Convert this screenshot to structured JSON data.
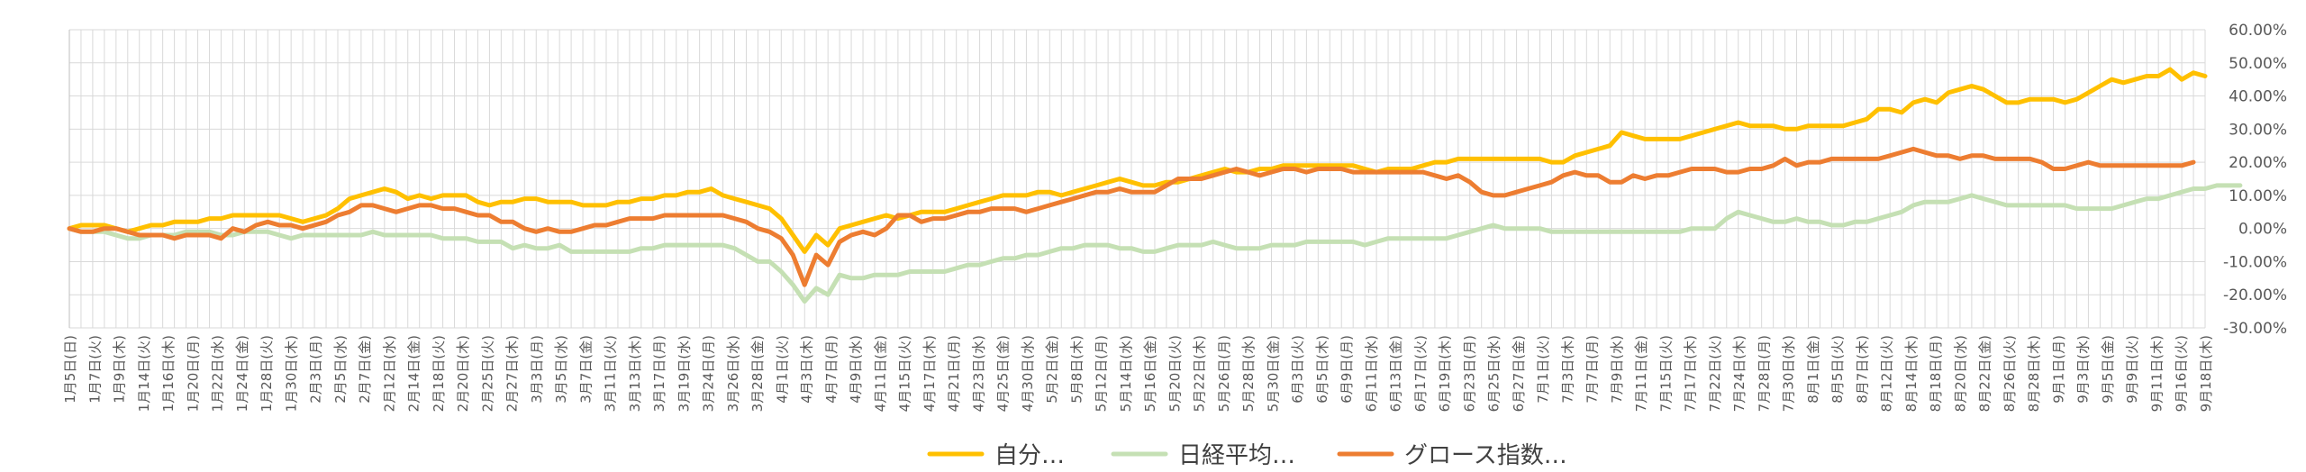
{
  "chart_data": {
    "type": "line",
    "title": "",
    "xlabel": "",
    "ylabel": "",
    "ylim": [
      -0.3,
      0.6
    ],
    "y_ticks": [
      0.6,
      0.5,
      0.4,
      0.3,
      0.2,
      0.1,
      0.0,
      -0.1,
      -0.2,
      -0.3
    ],
    "y_tick_labels": [
      "60.00%",
      "50.00%",
      "40.00%",
      "30.00%",
      "20.00%",
      "10.00%",
      "0.00%",
      "-10.00%",
      "-20.00%",
      "-30.00%"
    ],
    "grid": true,
    "legend_position": "bottom",
    "x_labels": [
      "1月5日(日)",
      "1月7日(火)",
      "1月9日(木)",
      "1月14日(火)",
      "1月16日(木)",
      "1月20日(月)",
      "1月22日(水)",
      "1月24日(金)",
      "1月28日(火)",
      "1月30日(木)",
      "2月3日(月)",
      "2月5日(水)",
      "2月7日(金)",
      "2月12日(水)",
      "2月14日(金)",
      "2月18日(火)",
      "2月20日(木)",
      "2月25日(火)",
      "2月27日(木)",
      "3月3日(月)",
      "3月5日(水)",
      "3月7日(金)",
      "3月11日(火)",
      "3月13日(木)",
      "3月17日(月)",
      "3月19日(水)",
      "3月24日(月)",
      "3月26日(水)",
      "3月28日(金)",
      "4月1日(火)",
      "4月3日(木)",
      "4月7日(月)",
      "4月9日(水)",
      "4月11日(金)",
      "4月15日(火)",
      "4月17日(木)",
      "4月21日(月)",
      "4月23日(水)",
      "4月25日(金)",
      "4月30日(水)",
      "5月2日(金)",
      "5月8日(木)",
      "5月12日(月)",
      "5月14日(水)",
      "5月16日(金)",
      "5月20日(火)",
      "5月22日(木)",
      "5月26日(月)",
      "5月28日(水)",
      "5月30日(金)",
      "6月3日(火)",
      "6月5日(木)",
      "6月9日(月)",
      "6月11日(水)",
      "6月13日(金)",
      "6月17日(火)",
      "6月19日(木)",
      "6月23日(月)",
      "6月25日(水)",
      "6月27日(金)",
      "7月1日(火)",
      "7月3日(木)",
      "7月7日(月)",
      "7月9日(水)",
      "7月11日(金)",
      "7月15日(火)",
      "7月17日(木)",
      "7月22日(火)",
      "7月24日(木)",
      "7月28日(月)",
      "7月30日(水)",
      "8月1日(金)",
      "8月5日(火)",
      "8月7日(木)",
      "8月12日(火)",
      "8月14日(木)",
      "8月18日(月)",
      "8月20日(水)",
      "8月22日(金)",
      "8月26日(火)",
      "8月28日(木)",
      "9月1日(月)",
      "9月3日(水)",
      "9月5日(金)",
      "9月9日(火)",
      "9月11日(木)",
      "9月16日(火)",
      "9月18日(木)"
    ],
    "series": [
      {
        "name": "自分…",
        "color": "#ffc000",
        "values": [
          0.0,
          0.01,
          0.01,
          0.01,
          0.0,
          -0.01,
          0.0,
          0.01,
          0.01,
          0.02,
          0.02,
          0.02,
          0.03,
          0.03,
          0.04,
          0.04,
          0.04,
          0.04,
          0.04,
          0.03,
          0.02,
          0.03,
          0.04,
          0.06,
          0.09,
          0.1,
          0.11,
          0.12,
          0.11,
          0.09,
          0.1,
          0.09,
          0.1,
          0.1,
          0.1,
          0.08,
          0.07,
          0.08,
          0.08,
          0.09,
          0.09,
          0.08,
          0.08,
          0.08,
          0.07,
          0.07,
          0.07,
          0.08,
          0.08,
          0.09,
          0.09,
          0.1,
          0.1,
          0.11,
          0.11,
          0.12,
          0.1,
          0.09,
          0.08,
          0.07,
          0.06,
          0.03,
          -0.02,
          -0.07,
          -0.02,
          -0.05,
          0.0,
          0.01,
          0.02,
          0.03,
          0.04,
          0.03,
          0.04,
          0.05,
          0.05,
          0.05,
          0.06,
          0.07,
          0.08,
          0.09,
          0.1,
          0.1,
          0.1,
          0.11,
          0.11,
          0.1,
          0.11,
          0.12,
          0.13,
          0.14,
          0.15,
          0.14,
          0.13,
          0.13,
          0.14,
          0.14,
          0.15,
          0.16,
          0.17,
          0.18,
          0.17,
          0.17,
          0.18,
          0.18,
          0.19,
          0.19,
          0.19,
          0.19,
          0.19,
          0.19,
          0.19,
          0.18,
          0.17,
          0.18,
          0.18,
          0.18,
          0.19,
          0.2,
          0.2,
          0.21,
          0.21,
          0.21,
          0.21,
          0.21,
          0.21,
          0.21,
          0.21,
          0.2,
          0.2,
          0.22,
          0.23,
          0.24,
          0.25,
          0.29,
          0.28,
          0.27,
          0.27,
          0.27,
          0.27,
          0.28,
          0.29,
          0.3,
          0.31,
          0.32,
          0.31,
          0.31,
          0.31,
          0.3,
          0.3,
          0.31,
          0.31,
          0.31,
          0.31,
          0.32,
          0.33,
          0.36,
          0.36,
          0.35,
          0.38,
          0.39,
          0.38,
          0.41,
          0.42,
          0.43,
          0.42,
          0.4,
          0.38,
          0.38,
          0.39,
          0.39,
          0.39,
          0.38,
          0.39,
          0.41,
          0.43,
          0.45,
          0.44,
          0.45,
          0.46,
          0.46,
          0.48,
          0.45,
          0.47,
          0.46
        ]
      },
      {
        "name": "日経平均…",
        "color": "#c5e0b4",
        "values": [
          0.0,
          -0.01,
          -0.01,
          -0.01,
          -0.02,
          -0.03,
          -0.03,
          -0.02,
          -0.02,
          -0.02,
          -0.01,
          -0.01,
          -0.01,
          -0.02,
          -0.02,
          -0.01,
          -0.01,
          -0.01,
          -0.02,
          -0.03,
          -0.02,
          -0.02,
          -0.02,
          -0.02,
          -0.02,
          -0.02,
          -0.01,
          -0.02,
          -0.02,
          -0.02,
          -0.02,
          -0.02,
          -0.03,
          -0.03,
          -0.03,
          -0.04,
          -0.04,
          -0.04,
          -0.06,
          -0.05,
          -0.06,
          -0.06,
          -0.05,
          -0.07,
          -0.07,
          -0.07,
          -0.07,
          -0.07,
          -0.07,
          -0.06,
          -0.06,
          -0.05,
          -0.05,
          -0.05,
          -0.05,
          -0.05,
          -0.05,
          -0.06,
          -0.08,
          -0.1,
          -0.1,
          -0.13,
          -0.17,
          -0.22,
          -0.18,
          -0.2,
          -0.14,
          -0.15,
          -0.15,
          -0.14,
          -0.14,
          -0.14,
          -0.13,
          -0.13,
          -0.13,
          -0.13,
          -0.12,
          -0.11,
          -0.11,
          -0.1,
          -0.09,
          -0.09,
          -0.08,
          -0.08,
          -0.07,
          -0.06,
          -0.06,
          -0.05,
          -0.05,
          -0.05,
          -0.06,
          -0.06,
          -0.07,
          -0.07,
          -0.06,
          -0.05,
          -0.05,
          -0.05,
          -0.04,
          -0.05,
          -0.06,
          -0.06,
          -0.06,
          -0.05,
          -0.05,
          -0.05,
          -0.04,
          -0.04,
          -0.04,
          -0.04,
          -0.04,
          -0.05,
          -0.04,
          -0.03,
          -0.03,
          -0.03,
          -0.03,
          -0.03,
          -0.03,
          -0.02,
          -0.01,
          0.0,
          0.01,
          0.0,
          0.0,
          0.0,
          0.0,
          -0.01,
          -0.01,
          -0.01,
          -0.01,
          -0.01,
          -0.01,
          -0.01,
          -0.01,
          -0.01,
          -0.01,
          -0.01,
          -0.01,
          0.0,
          0.0,
          0.0,
          0.03,
          0.05,
          0.04,
          0.03,
          0.02,
          0.02,
          0.03,
          0.02,
          0.02,
          0.01,
          0.01,
          0.02,
          0.02,
          0.03,
          0.04,
          0.05,
          0.07,
          0.08,
          0.08,
          0.08,
          0.09,
          0.1,
          0.09,
          0.08,
          0.07,
          0.07,
          0.07,
          0.07,
          0.07,
          0.07,
          0.06,
          0.06,
          0.06,
          0.06,
          0.07,
          0.08,
          0.09,
          0.09,
          0.1,
          0.11,
          0.12,
          0.12,
          0.13,
          0.13,
          0.13
        ]
      },
      {
        "name": "グロース指数…",
        "color": "#ed7d31",
        "values": [
          0.0,
          -0.01,
          -0.01,
          0.0,
          0.0,
          -0.01,
          -0.02,
          -0.02,
          -0.02,
          -0.03,
          -0.02,
          -0.02,
          -0.02,
          -0.03,
          0.0,
          -0.01,
          0.01,
          0.02,
          0.01,
          0.01,
          0.0,
          0.01,
          0.02,
          0.04,
          0.05,
          0.07,
          0.07,
          0.06,
          0.05,
          0.06,
          0.07,
          0.07,
          0.06,
          0.06,
          0.05,
          0.04,
          0.04,
          0.02,
          0.02,
          0.0,
          -0.01,
          0.0,
          -0.01,
          -0.01,
          0.0,
          0.01,
          0.01,
          0.02,
          0.03,
          0.03,
          0.03,
          0.04,
          0.04,
          0.04,
          0.04,
          0.04,
          0.04,
          0.03,
          0.02,
          0.0,
          -0.01,
          -0.03,
          -0.08,
          -0.17,
          -0.08,
          -0.11,
          -0.04,
          -0.02,
          -0.01,
          -0.02,
          0.0,
          0.04,
          0.04,
          0.02,
          0.03,
          0.03,
          0.04,
          0.05,
          0.05,
          0.06,
          0.06,
          0.06,
          0.05,
          0.06,
          0.07,
          0.08,
          0.09,
          0.1,
          0.11,
          0.11,
          0.12,
          0.11,
          0.11,
          0.11,
          0.13,
          0.15,
          0.15,
          0.15,
          0.16,
          0.17,
          0.18,
          0.17,
          0.16,
          0.17,
          0.18,
          0.18,
          0.17,
          0.18,
          0.18,
          0.18,
          0.17,
          0.17,
          0.17,
          0.17,
          0.17,
          0.17,
          0.17,
          0.16,
          0.15,
          0.16,
          0.14,
          0.11,
          0.1,
          0.1,
          0.11,
          0.12,
          0.13,
          0.14,
          0.16,
          0.17,
          0.16,
          0.16,
          0.14,
          0.14,
          0.16,
          0.15,
          0.16,
          0.16,
          0.17,
          0.18,
          0.18,
          0.18,
          0.17,
          0.17,
          0.18,
          0.18,
          0.19,
          0.21,
          0.19,
          0.2,
          0.2,
          0.21,
          0.21,
          0.21,
          0.21,
          0.21,
          0.22,
          0.23,
          0.24,
          0.23,
          0.22,
          0.22,
          0.21,
          0.22,
          0.22,
          0.21,
          0.21,
          0.21,
          0.21,
          0.2,
          0.18,
          0.18,
          0.19,
          0.2,
          0.19,
          0.19,
          0.19,
          0.19,
          0.19,
          0.19,
          0.19,
          0.19,
          0.2
        ]
      }
    ]
  }
}
